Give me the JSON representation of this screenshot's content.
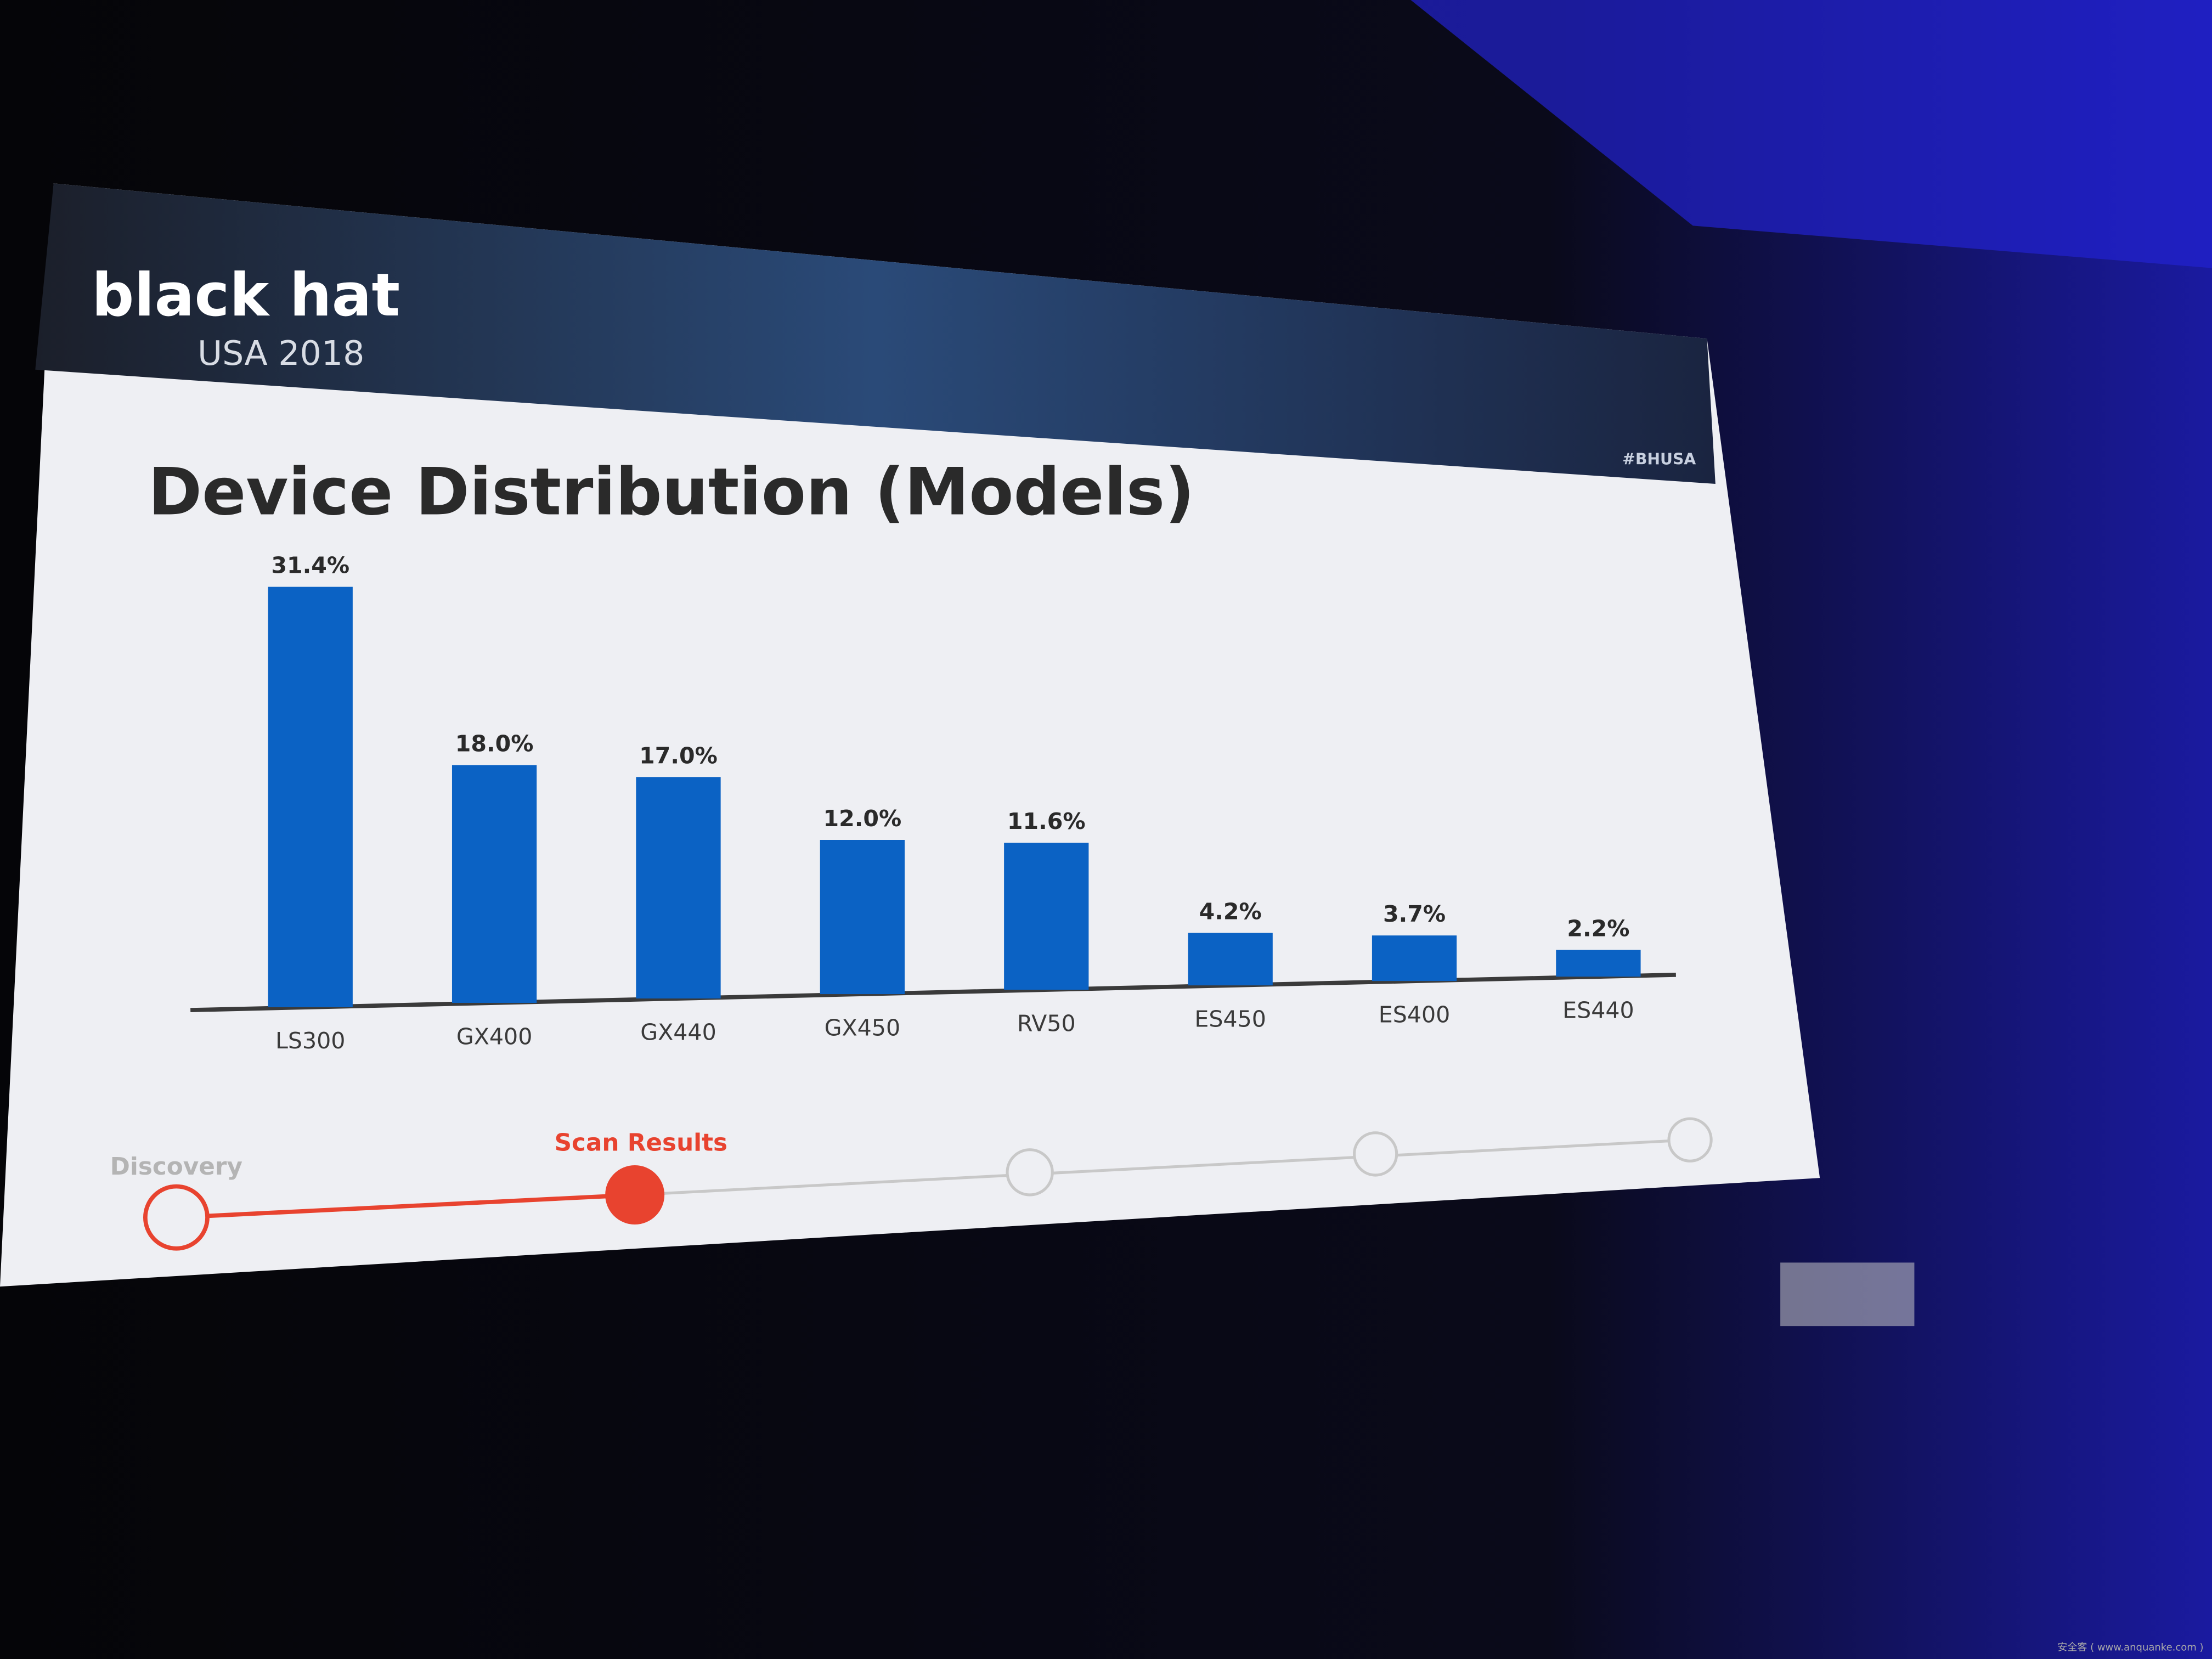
{
  "header": {
    "logo": "black hat",
    "event": "USA 2018",
    "hashtag": "#BHUSA"
  },
  "chart_data": {
    "type": "bar",
    "title": "Device Distribution (Models)",
    "categories": [
      "LS300",
      "GX400",
      "GX440",
      "GX450",
      "RV50",
      "ES450",
      "ES400",
      "ES440"
    ],
    "values": [
      31.4,
      18.0,
      17.0,
      12.0,
      11.6,
      4.2,
      3.7,
      2.2
    ],
    "value_labels": [
      "31.4%",
      "18.0%",
      "17.0%",
      "12.0%",
      "11.6%",
      "4.2%",
      "3.7%",
      "2.2%"
    ],
    "color": "#0b62c4"
  },
  "progress": {
    "steps": [
      "Discovery",
      "Scan Results"
    ]
  },
  "watermark": "安全客 ( www.anquanke.com )"
}
